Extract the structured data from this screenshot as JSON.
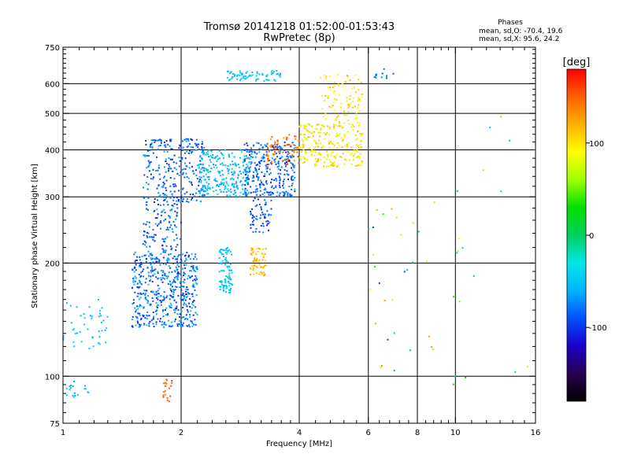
{
  "chart_data": {
    "type": "scatter",
    "title": "Tromsø 20141218 01:52:00-01:53:43",
    "subtitle": "RwPretec (8p)",
    "xlabel": "Frequency [MHz]",
    "ylabel": "Stationary phase Virtual Height [km]",
    "x_scale": "log",
    "y_scale": "log",
    "xlim": [
      1,
      16
    ],
    "ylim": [
      75,
      750
    ],
    "x_ticks": [
      1,
      2,
      4,
      6,
      8,
      10,
      16
    ],
    "x_tick_labels": [
      "1",
      "2",
      "4",
      "6",
      "8",
      "10",
      "16"
    ],
    "y_ticks": [
      75,
      100,
      200,
      300,
      400,
      500,
      600,
      750
    ],
    "y_tick_labels": [
      "75",
      "100",
      "200",
      "300",
      "400",
      "500",
      "600",
      "750"
    ],
    "x_minor_ticks": [
      1.1,
      1.2,
      1.3,
      1.4,
      1.5,
      1.6,
      1.7,
      1.8,
      1.9,
      2.2,
      2.4,
      2.6,
      2.8,
      3,
      3.2,
      3.4,
      3.6,
      3.8,
      4.4,
      4.8,
      5.2,
      5.6,
      6.4,
      6.8,
      7.2,
      7.6,
      8.4,
      8.8,
      9.2,
      9.6,
      11,
      12,
      13,
      14,
      15
    ],
    "y_minor_ticks": [
      80,
      85,
      90,
      95,
      110,
      120,
      130,
      140,
      150,
      160,
      170,
      180,
      190,
      220,
      240,
      260,
      280,
      320,
      340,
      360,
      380,
      420,
      440,
      460,
      480,
      520,
      540,
      560,
      580,
      620,
      640,
      660,
      680,
      700,
      720,
      740
    ],
    "grid": true,
    "phase_stats": {
      "heading": "Phases",
      "line_o": "mean, sd,O: -70.4, 19.6",
      "line_x": "mean, sd,X:  95.6, 24.2"
    },
    "colorbar": {
      "label": "[deg]",
      "range": [
        -180,
        180
      ],
      "ticks": [
        100,
        0,
        -100
      ],
      "tick_labels": [
        "100",
        "0",
        "-100"
      ],
      "colors": [
        "#000000",
        "#2a0050",
        "#1a00c8",
        "#0050ff",
        "#00b4ff",
        "#00e8e8",
        "#00d060",
        "#00e000",
        "#a0ff00",
        "#ffff00",
        "#ffb000",
        "#ff6000",
        "#ff0000"
      ]
    },
    "point_clusters": [
      {
        "f": [
          1.0,
          1.3
        ],
        "h": [
          115,
          160
        ],
        "phase": [
          -60,
          -40
        ],
        "n": 45
      },
      {
        "f": [
          1.0,
          1.2
        ],
        "h": [
          88,
          97
        ],
        "phase": [
          -70,
          -40
        ],
        "n": 18
      },
      {
        "f": [
          1.5,
          2.2
        ],
        "h": [
          135,
          215
        ],
        "phase": [
          -110,
          -50
        ],
        "n": 520
      },
      {
        "f": [
          1.6,
          2.0
        ],
        "h": [
          215,
          300
        ],
        "phase": [
          -110,
          -60
        ],
        "n": 120
      },
      {
        "f": [
          1.6,
          2.3
        ],
        "h": [
          290,
          430
        ],
        "phase": [
          -110,
          -60
        ],
        "n": 260
      },
      {
        "f": [
          2.5,
          2.7
        ],
        "h": [
          165,
          220
        ],
        "phase": [
          -60,
          -40
        ],
        "n": 90
      },
      {
        "f": [
          2.2,
          3.0
        ],
        "h": [
          300,
          400
        ],
        "phase": [
          -70,
          -40
        ],
        "n": 240
      },
      {
        "f": [
          2.9,
          3.9
        ],
        "h": [
          300,
          420
        ],
        "phase": [
          -110,
          -60
        ],
        "n": 300
      },
      {
        "f": [
          3.0,
          3.3
        ],
        "h": [
          185,
          220
        ],
        "phase": [
          100,
          130
        ],
        "n": 60
      },
      {
        "f": [
          3.0,
          3.4
        ],
        "h": [
          240,
          300
        ],
        "phase": [
          -110,
          -70
        ],
        "n": 60
      },
      {
        "f": [
          3.3,
          4.0
        ],
        "h": [
          360,
          440
        ],
        "phase": [
          130,
          160
        ],
        "n": 70
      },
      {
        "f": [
          4.0,
          5.8
        ],
        "h": [
          360,
          470
        ],
        "phase": [
          70,
          120
        ],
        "n": 240
      },
      {
        "f": [
          4.5,
          5.8
        ],
        "h": [
          470,
          640
        ],
        "phase": [
          80,
          120
        ],
        "n": 90
      },
      {
        "f": [
          2.6,
          3.6
        ],
        "h": [
          610,
          650
        ],
        "phase": [
          -60,
          -40
        ],
        "n": 70
      },
      {
        "f": [
          6.2,
          7.0
        ],
        "h": [
          620,
          660
        ],
        "phase": [
          -90,
          -60
        ],
        "n": 12
      },
      {
        "f": [
          1.8,
          1.9
        ],
        "h": [
          85,
          100
        ],
        "phase": [
          140,
          160
        ],
        "n": 20
      },
      {
        "f": [
          6.0,
          9.0
        ],
        "h": [
          100,
          300
        ],
        "phase": [
          -100,
          150
        ],
        "n": 30
      },
      {
        "f": [
          9.0,
          15.5
        ],
        "h": [
          90,
          500
        ],
        "phase": [
          -60,
          100
        ],
        "n": 18
      }
    ]
  }
}
